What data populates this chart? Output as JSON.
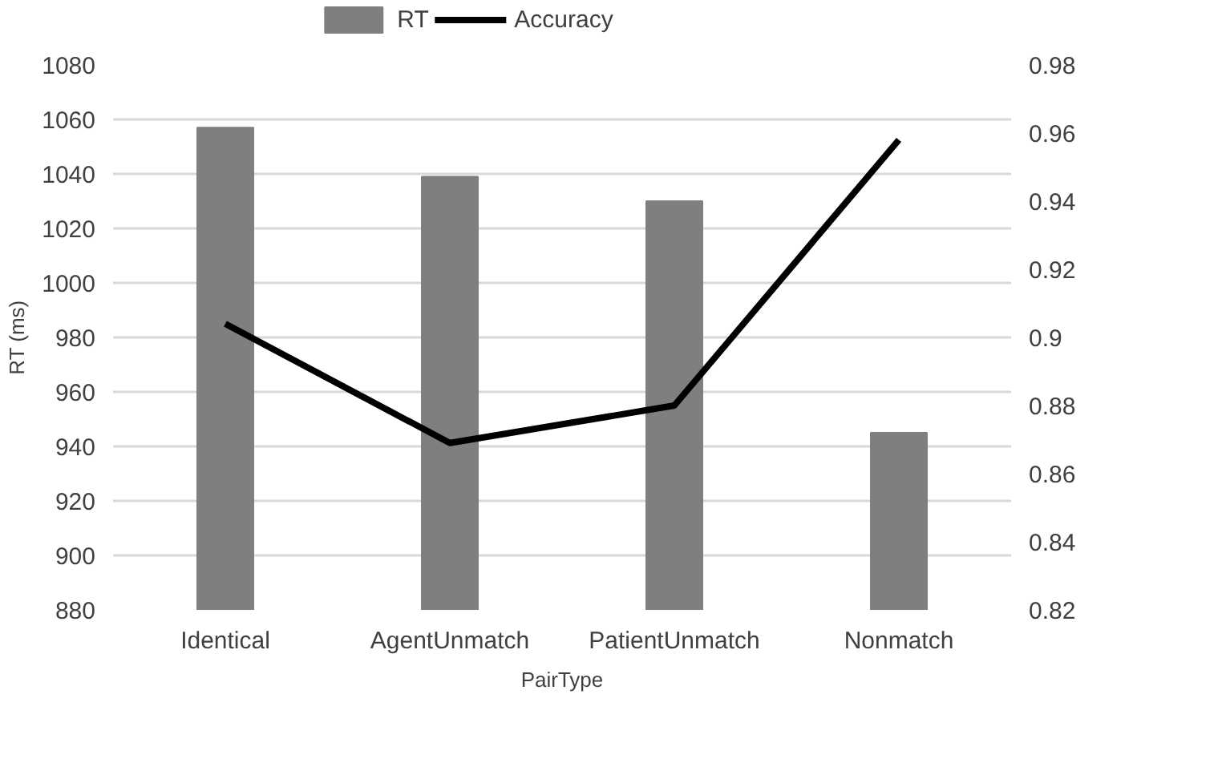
{
  "chart_data": {
    "type": "bar",
    "xlabel": "PairType",
    "ylabel": "RT (ms)",
    "categories": [
      "Identical",
      "AgentUnmatch",
      "PatientUnmatch",
      "Nonmatch"
    ],
    "series": [
      {
        "name": "RT",
        "color": "#7f7f7f",
        "values": [
          1057,
          1039,
          1030,
          945
        ]
      },
      {
        "name": "Accuracy",
        "type": "line",
        "color": "#000000",
        "axis": "y2",
        "values": [
          0.904,
          0.869,
          0.88,
          0.958
        ]
      }
    ],
    "ylim": [
      880,
      1080
    ],
    "yticks": [
      880,
      900,
      920,
      940,
      960,
      980,
      1000,
      1020,
      1040,
      1060,
      1080
    ],
    "y2lim": [
      0.82,
      0.98
    ],
    "y2ticks": [
      0.82,
      0.84,
      0.86,
      0.88,
      {
        "value": 0.9,
        "label": "0.9"
      },
      0.92,
      0.94,
      0.96,
      0.98
    ],
    "grid": "y",
    "legend": "top",
    "marker": "none"
  }
}
